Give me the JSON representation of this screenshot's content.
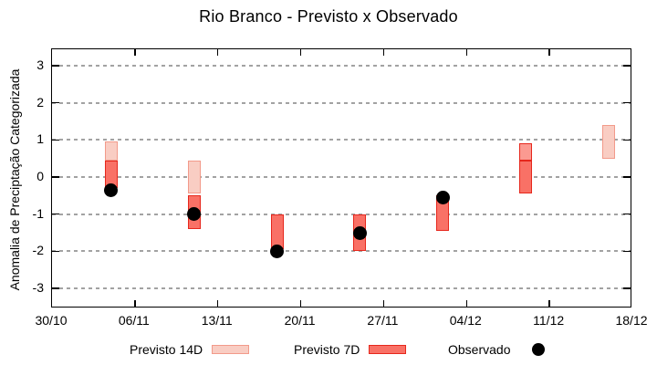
{
  "title": "Rio Branco - Previsto x Observado",
  "y_axis": {
    "label": "Anomalia de Preciptação Categorizada",
    "ticks": [
      3,
      2,
      1,
      0,
      -1,
      -2,
      -3
    ]
  },
  "x_axis": {
    "ticks": [
      {
        "label": "30/10",
        "day": 0
      },
      {
        "label": "06/11",
        "day": 7
      },
      {
        "label": "13/11",
        "day": 14
      },
      {
        "label": "20/11",
        "day": 21
      },
      {
        "label": "27/11",
        "day": 28
      },
      {
        "label": "04/12",
        "day": 35
      },
      {
        "label": "11/12",
        "day": 42
      },
      {
        "label": "18/12",
        "day": 49
      }
    ]
  },
  "legend": {
    "items": [
      {
        "label": "Previsto 14D",
        "swatch": "prev14"
      },
      {
        "label": "Previsto 7D",
        "swatch": "prev7"
      },
      {
        "label": "Observado",
        "swatch": "dot"
      }
    ]
  },
  "chart_data": {
    "type": "bar",
    "subtype": "ranged-bars-with-scatter",
    "title": "Rio Branco - Previsto x Observado",
    "xlabel": "",
    "ylabel": "Anomalia de Preciptação Categorizada",
    "ylim": [
      -3.5,
      3.5
    ],
    "x_start_label": "30/10",
    "x_end_label": "18/12",
    "x_total_days": 49,
    "grid": "horizontal-dashed",
    "legend_position": "below",
    "groups": [
      {
        "date": "04/11",
        "day": 5,
        "prev14": [
          0.45,
          0.95
        ],
        "prev7": [
          -0.3,
          0.45
        ],
        "observado": -0.35,
        "overlap14": false
      },
      {
        "date": "11/11",
        "day": 12,
        "prev14": [
          -0.45,
          0.45
        ],
        "prev7": [
          -1.4,
          -0.5
        ],
        "observado": -1.0,
        "overlap14": false
      },
      {
        "date": "18/11",
        "day": 19,
        "prev14": null,
        "prev7": [
          -1.95,
          -1.0
        ],
        "observado": -2.0,
        "overlap14": false
      },
      {
        "date": "25/11",
        "day": 26,
        "prev14": null,
        "prev7": [
          -2.0,
          -1.0
        ],
        "observado": -1.5,
        "overlap14": false
      },
      {
        "date": "02/12",
        "day": 33,
        "prev14": null,
        "prev7": [
          -1.45,
          -0.5
        ],
        "observado": -0.55,
        "overlap14": false
      },
      {
        "date": "09/12",
        "day": 40,
        "prev14": [
          0.45,
          0.9
        ],
        "prev7": [
          -0.45,
          0.45
        ],
        "observado": null,
        "overlap14": true
      },
      {
        "date": "16/12",
        "day": 47,
        "prev14": [
          0.5,
          1.4
        ],
        "prev7": null,
        "observado": null,
        "overlap14": false
      }
    ],
    "colors": {
      "prev14_fill": "#f9cdc3",
      "prev14_border": "#f29a8a",
      "prev14_overlap_fill": "#fb9a91",
      "prev7_fill": "#f97166",
      "prev7_border": "#e6271c",
      "observado": "#000000",
      "grid": "#a2a2a2",
      "axis": "#000000"
    }
  }
}
